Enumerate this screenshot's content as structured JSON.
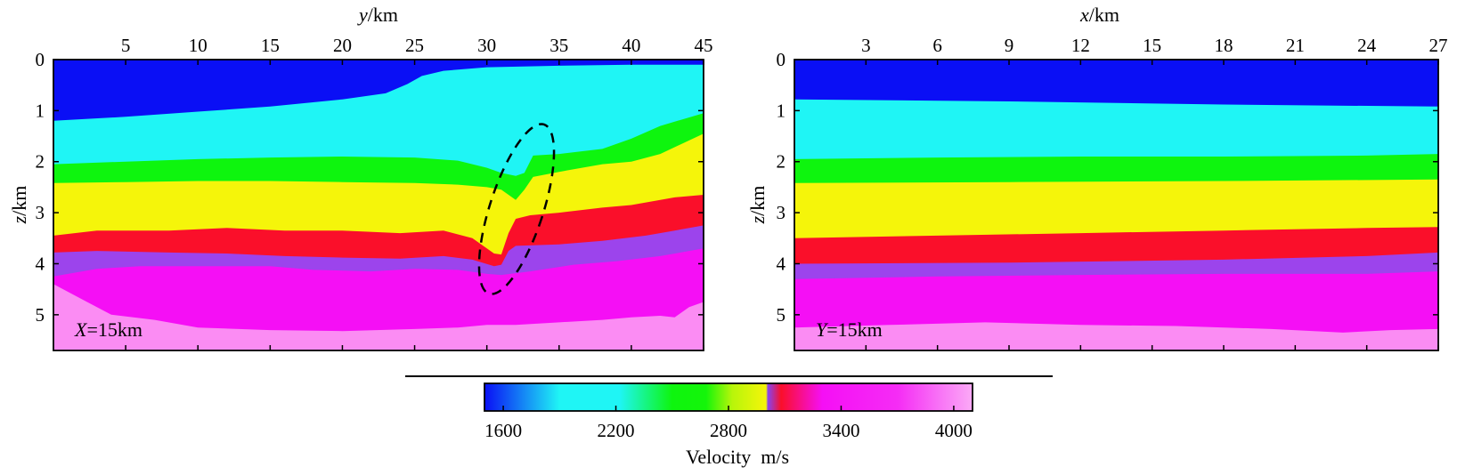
{
  "chart_data": [
    {
      "type": "heatmap",
      "panel": "left",
      "title": "",
      "xlabel": "y/km",
      "xlabel_var": "y",
      "xlabel_unit": "/km",
      "ylabel": "z/km",
      "ylabel_var": "z",
      "ylabel_unit": "/km",
      "xlim": [
        0,
        45
      ],
      "ylim": [
        0,
        5.7
      ],
      "xticks": [
        5,
        10,
        15,
        20,
        25,
        30,
        35,
        40,
        45
      ],
      "yticks": [
        0,
        1,
        2,
        3,
        4,
        5
      ],
      "annotation": "X=15km",
      "annotation_var": "X",
      "annotation_rest": "=15km",
      "highlight": {
        "shape": "dashed-ellipse",
        "center_y_km": 32.7,
        "center_z_km": 3.0
      },
      "layers": [
        {
          "velocity": 1600,
          "color": "#0a0ff5",
          "top": [
            [
              0,
              0
            ],
            [
              45,
              0
            ]
          ]
        },
        {
          "velocity": 2100,
          "color": "#1ff5f5",
          "top": [
            [
              0,
              1.2
            ],
            [
              5,
              1.12
            ],
            [
              10,
              1.02
            ],
            [
              15,
              0.92
            ],
            [
              20,
              0.78
            ],
            [
              23,
              0.66
            ],
            [
              24.5,
              0.48
            ],
            [
              25.5,
              0.32
            ],
            [
              27,
              0.22
            ],
            [
              30,
              0.15
            ],
            [
              35,
              0.12
            ],
            [
              40,
              0.1
            ],
            [
              45,
              0.1
            ]
          ]
        },
        {
          "velocity": 2600,
          "color": "#0ef50e",
          "top": [
            [
              0,
              2.05
            ],
            [
              5,
              2.0
            ],
            [
              10,
              1.95
            ],
            [
              15,
              1.92
            ],
            [
              20,
              1.9
            ],
            [
              25,
              1.92
            ],
            [
              28,
              1.98
            ],
            [
              30,
              2.12
            ],
            [
              31,
              2.22
            ],
            [
              32,
              2.28
            ],
            [
              32.6,
              2.22
            ],
            [
              33.2,
              1.88
            ],
            [
              35,
              1.85
            ],
            [
              38,
              1.75
            ],
            [
              40,
              1.55
            ],
            [
              42,
              1.3
            ],
            [
              45,
              1.05
            ]
          ]
        },
        {
          "velocity": 2950,
          "color": "#f5f50a",
          "top": [
            [
              0,
              2.42
            ],
            [
              5,
              2.4
            ],
            [
              10,
              2.38
            ],
            [
              15,
              2.38
            ],
            [
              20,
              2.4
            ],
            [
              25,
              2.42
            ],
            [
              28,
              2.45
            ],
            [
              30,
              2.5
            ],
            [
              31,
              2.55
            ],
            [
              32,
              2.75
            ],
            [
              32.6,
              2.55
            ],
            [
              33.2,
              2.3
            ],
            [
              35,
              2.2
            ],
            [
              38,
              2.05
            ],
            [
              40,
              2.0
            ],
            [
              42,
              1.85
            ],
            [
              45,
              1.45
            ]
          ]
        },
        {
          "velocity": 3050,
          "color": "#fa0f2a",
          "top": [
            [
              0,
              3.45
            ],
            [
              3,
              3.35
            ],
            [
              8,
              3.35
            ],
            [
              12,
              3.3
            ],
            [
              16,
              3.35
            ],
            [
              20,
              3.35
            ],
            [
              24,
              3.4
            ],
            [
              27,
              3.35
            ],
            [
              29,
              3.5
            ],
            [
              30.5,
              3.8
            ],
            [
              31,
              3.82
            ],
            [
              31.5,
              3.4
            ],
            [
              32,
              3.12
            ],
            [
              33,
              3.05
            ],
            [
              35,
              3.0
            ],
            [
              38,
              2.9
            ],
            [
              40,
              2.85
            ],
            [
              43,
              2.7
            ],
            [
              45,
              2.65
            ]
          ]
        },
        {
          "velocity": 3200,
          "color": "#9c44ec",
          "top": [
            [
              0,
              3.78
            ],
            [
              3,
              3.75
            ],
            [
              8,
              3.78
            ],
            [
              12,
              3.8
            ],
            [
              16,
              3.85
            ],
            [
              20,
              3.88
            ],
            [
              24,
              3.9
            ],
            [
              27,
              3.85
            ],
            [
              29,
              3.92
            ],
            [
              30.5,
              4.05
            ],
            [
              31,
              4.02
            ],
            [
              31.5,
              3.75
            ],
            [
              32,
              3.65
            ],
            [
              35,
              3.62
            ],
            [
              38,
              3.55
            ],
            [
              41,
              3.45
            ],
            [
              43,
              3.35
            ],
            [
              45,
              3.25
            ]
          ]
        },
        {
          "velocity": 3500,
          "color": "#f50ff5",
          "top": [
            [
              0,
              4.25
            ],
            [
              3,
              4.1
            ],
            [
              6,
              4.05
            ],
            [
              10,
              4.05
            ],
            [
              15,
              4.05
            ],
            [
              18,
              4.12
            ],
            [
              22,
              4.15
            ],
            [
              25,
              4.1
            ],
            [
              28,
              4.12
            ],
            [
              30,
              4.2
            ],
            [
              31,
              4.22
            ],
            [
              33,
              4.15
            ],
            [
              36,
              4.02
            ],
            [
              39,
              3.95
            ],
            [
              42,
              3.85
            ],
            [
              45,
              3.7
            ]
          ]
        },
        {
          "velocity": 3900,
          "color": "#fb8cf3",
          "top": [
            [
              0,
              4.4
            ],
            [
              2,
              4.7
            ],
            [
              4,
              5.0
            ],
            [
              7,
              5.1
            ],
            [
              10,
              5.25
            ],
            [
              15,
              5.3
            ],
            [
              20,
              5.32
            ],
            [
              25,
              5.28
            ],
            [
              28,
              5.25
            ],
            [
              30,
              5.2
            ],
            [
              32,
              5.2
            ],
            [
              35,
              5.15
            ],
            [
              38,
              5.1
            ],
            [
              40,
              5.05
            ],
            [
              42,
              5.02
            ],
            [
              43,
              5.05
            ],
            [
              44,
              4.85
            ],
            [
              45,
              4.75
            ]
          ]
        }
      ]
    },
    {
      "type": "heatmap",
      "panel": "right",
      "title": "",
      "xlabel": "x/km",
      "xlabel_var": "x",
      "xlabel_unit": "/km",
      "ylabel": "z/km",
      "ylabel_var": "z",
      "ylabel_unit": "/km",
      "xlim": [
        0,
        27
      ],
      "ylim": [
        0,
        5.7
      ],
      "xticks": [
        3,
        6,
        9,
        12,
        15,
        18,
        21,
        24,
        27
      ],
      "yticks": [
        0,
        1,
        2,
        3,
        4,
        5
      ],
      "annotation": "Y=15km",
      "annotation_var": "Y",
      "annotation_rest": "=15km",
      "layers": [
        {
          "velocity": 1600,
          "color": "#0a0ff5",
          "top": [
            [
              0,
              0
            ],
            [
              27,
              0
            ]
          ]
        },
        {
          "velocity": 2100,
          "color": "#1ff5f5",
          "top": [
            [
              0,
              0.78
            ],
            [
              9,
              0.82
            ],
            [
              18,
              0.88
            ],
            [
              27,
              0.92
            ]
          ]
        },
        {
          "velocity": 2600,
          "color": "#0ef50e",
          "top": [
            [
              0,
              1.95
            ],
            [
              6,
              1.92
            ],
            [
              12,
              1.9
            ],
            [
              18,
              1.9
            ],
            [
              24,
              1.88
            ],
            [
              27,
              1.85
            ]
          ]
        },
        {
          "velocity": 2950,
          "color": "#f5f50a",
          "top": [
            [
              0,
              2.42
            ],
            [
              9,
              2.4
            ],
            [
              18,
              2.38
            ],
            [
              27,
              2.35
            ]
          ]
        },
        {
          "velocity": 3050,
          "color": "#fa0f2a",
          "top": [
            [
              0,
              3.5
            ],
            [
              6,
              3.45
            ],
            [
              12,
              3.4
            ],
            [
              18,
              3.35
            ],
            [
              24,
              3.3
            ],
            [
              27,
              3.28
            ]
          ]
        },
        {
          "velocity": 3200,
          "color": "#9c44ec",
          "top": [
            [
              0,
              4.0
            ],
            [
              9,
              3.98
            ],
            [
              18,
              3.92
            ],
            [
              24,
              3.85
            ],
            [
              27,
              3.78
            ]
          ]
        },
        {
          "velocity": 3500,
          "color": "#f50ff5",
          "top": [
            [
              0,
              4.3
            ],
            [
              6,
              4.25
            ],
            [
              12,
              4.22
            ],
            [
              18,
              4.2
            ],
            [
              24,
              4.2
            ],
            [
              27,
              4.15
            ]
          ]
        },
        {
          "velocity": 3900,
          "color": "#fb8cf3",
          "top": [
            [
              0,
              5.25
            ],
            [
              4,
              5.2
            ],
            [
              8,
              5.15
            ],
            [
              12,
              5.2
            ],
            [
              16,
              5.22
            ],
            [
              20,
              5.28
            ],
            [
              23,
              5.35
            ],
            [
              25,
              5.3
            ],
            [
              27,
              5.28
            ]
          ]
        }
      ]
    },
    {
      "type": "colorbar",
      "title": "Velocity  m/s",
      "range": [
        1500,
        4100
      ],
      "ticks": [
        1600,
        2200,
        2800,
        3400,
        4000
      ],
      "stops": [
        {
          "v": 1500,
          "color": "#0a0ff5"
        },
        {
          "v": 1900,
          "color": "#1ff5f5"
        },
        {
          "v": 2220,
          "color": "#1ff5f5"
        },
        {
          "v": 2500,
          "color": "#0ef50e"
        },
        {
          "v": 2680,
          "color": "#14f50a"
        },
        {
          "v": 2820,
          "color": "#b8f50a"
        },
        {
          "v": 3000,
          "color": "#f5f50a"
        },
        {
          "v": 3010,
          "color": "#8844ee"
        },
        {
          "v": 3080,
          "color": "#fa0f2a"
        },
        {
          "v": 3300,
          "color": "#f50ff5"
        },
        {
          "v": 3700,
          "color": "#f52cf5"
        },
        {
          "v": 4100,
          "color": "#fbaaf6"
        }
      ]
    }
  ]
}
